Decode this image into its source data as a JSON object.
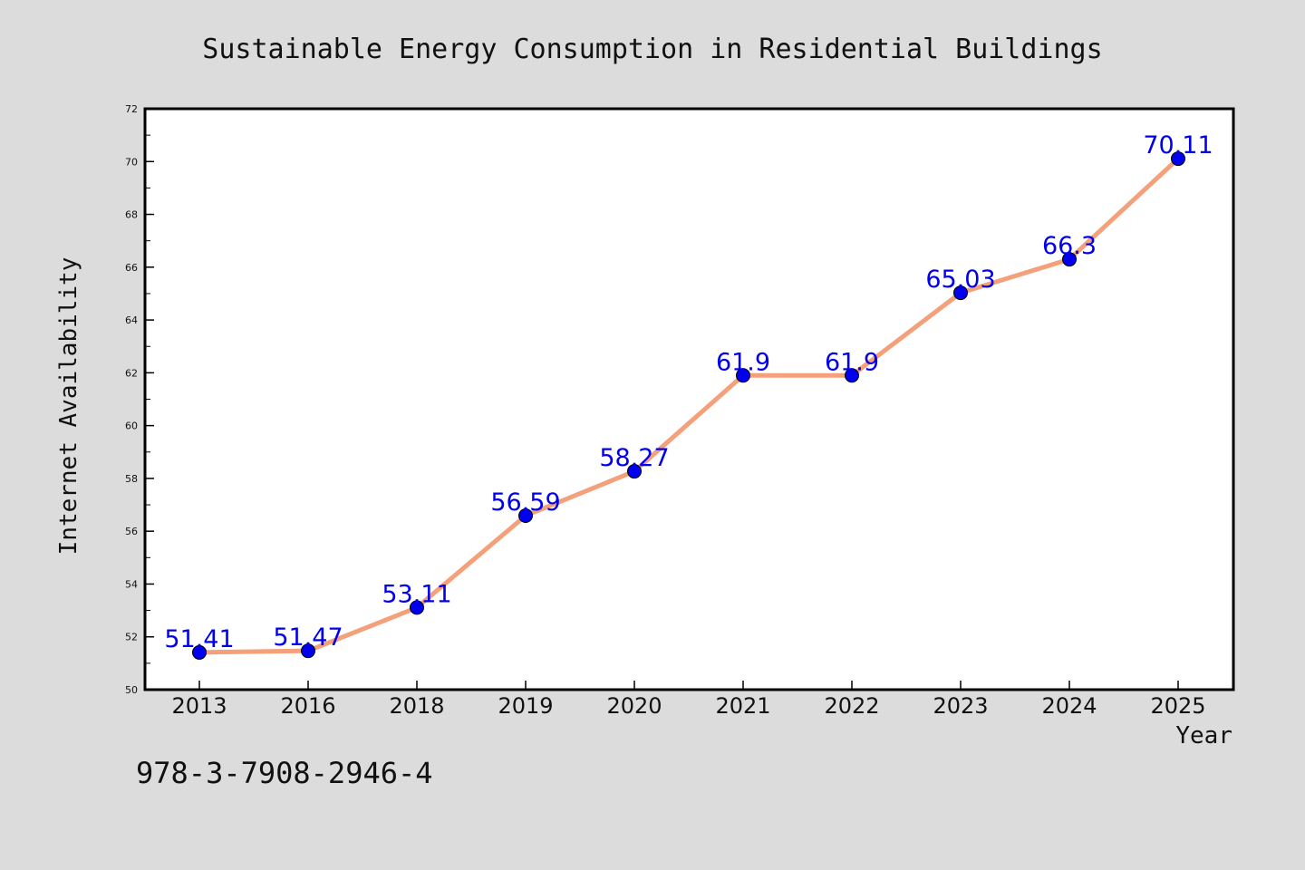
{
  "chart_data": {
    "type": "line",
    "title": "Sustainable Energy Consumption in Residential Buildings",
    "xlabel": "Year",
    "ylabel": "Internet Availability",
    "categories": [
      "2013",
      "2016",
      "2018",
      "2019",
      "2020",
      "2021",
      "2022",
      "2023",
      "2024",
      "2025"
    ],
    "series": [
      {
        "values": [
          51.41,
          51.47,
          53.11,
          56.59,
          58.27,
          61.9,
          61.9,
          65.03,
          66.3,
          70.11
        ],
        "data_labels": [
          "51.41",
          "51.47",
          "53.11",
          "56.59",
          "58.27",
          "61.9",
          "61.9",
          "65.03",
          "66.3",
          "70.11"
        ]
      }
    ],
    "ylim": [
      50,
      72
    ],
    "y_ticks": [
      50,
      52,
      54,
      56,
      58,
      60,
      62,
      64,
      66,
      68,
      70,
      72
    ],
    "grid": false,
    "line_color": "#f4a07a",
    "marker_color": "#0000ee",
    "label_color": "#0000ee",
    "background_color": "#dcdcdc",
    "plot_background": "#ffffff"
  },
  "annotation": {
    "isbn": "978-3-7908-2946-4"
  }
}
